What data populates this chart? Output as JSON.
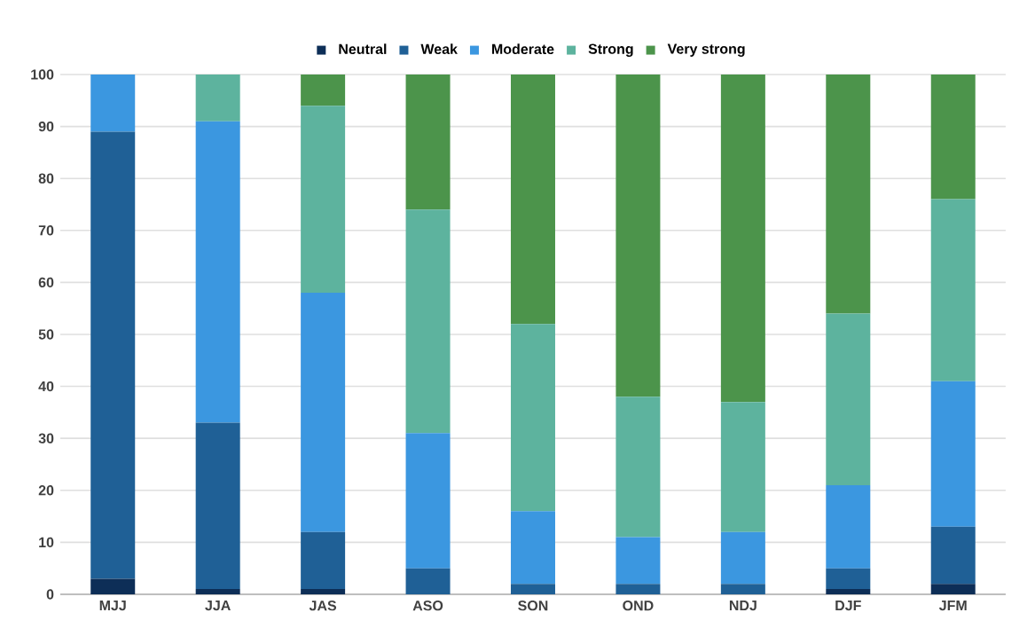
{
  "chart_data": {
    "type": "bar",
    "stacked": true,
    "categories": [
      "MJJ",
      "JJA",
      "JAS",
      "ASO",
      "SON",
      "OND",
      "NDJ",
      "DJF",
      "JFM"
    ],
    "series": [
      {
        "name": "Neutral",
        "color": "#0d2e57",
        "values": [
          3,
          1,
          1,
          0,
          0,
          0,
          0,
          1,
          2
        ]
      },
      {
        "name": "Weak",
        "color": "#1f6096",
        "values": [
          86,
          32,
          11,
          5,
          2,
          2,
          2,
          4,
          11
        ]
      },
      {
        "name": "Moderate",
        "color": "#3b97e0",
        "values": [
          11,
          58,
          46,
          26,
          14,
          9,
          10,
          16,
          28
        ]
      },
      {
        "name": "Strong",
        "color": "#5db39e",
        "values": [
          0,
          9,
          36,
          43,
          36,
          27,
          25,
          33,
          35
        ]
      },
      {
        "name": "Very strong",
        "color": "#4c944b",
        "values": [
          0,
          0,
          6,
          26,
          48,
          62,
          63,
          46,
          24
        ]
      }
    ],
    "ylim": [
      0,
      100
    ],
    "yticks": [
      0,
      10,
      20,
      30,
      40,
      50,
      60,
      70,
      80,
      90,
      100
    ],
    "grid": "y",
    "legend": "top"
  }
}
